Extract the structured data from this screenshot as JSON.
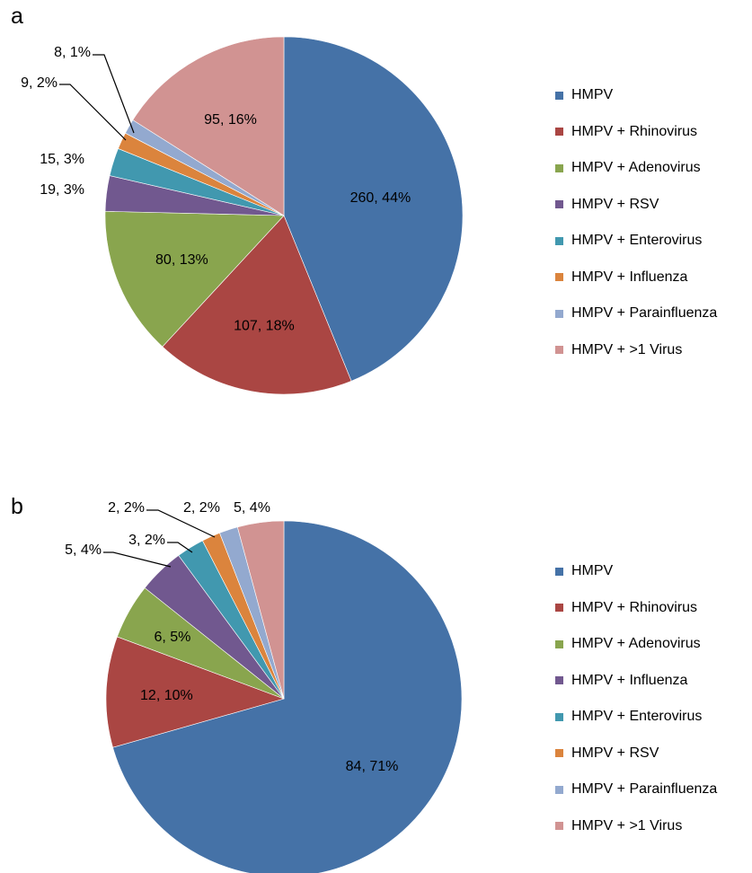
{
  "chart_data": [
    {
      "type": "pie",
      "panel_label": "a",
      "legend_position": "right",
      "slices": [
        {
          "name": "HMPV",
          "value": 260,
          "percent": "44%",
          "label": "260, 44%",
          "color": "#4572a7"
        },
        {
          "name": "HMPV + Rhinovirus",
          "value": 107,
          "percent": "18%",
          "label": "107, 18%",
          "color": "#aa4643"
        },
        {
          "name": "HMPV + Adenovirus",
          "value": 80,
          "percent": "13%",
          "label": "80, 13%",
          "color": "#89a54e"
        },
        {
          "name": "HMPV + RSV",
          "value": 19,
          "percent": "3%",
          "label": "19, 3%",
          "color": "#71588f"
        },
        {
          "name": "HMPV + Enterovirus",
          "value": 15,
          "percent": "3%",
          "label": "15, 3%",
          "color": "#4198af"
        },
        {
          "name": "HMPV + Influenza",
          "value": 9,
          "percent": "2%",
          "label": "9, 2%",
          "color": "#db843d"
        },
        {
          "name": "HMPV + Parainfluenza",
          "value": 8,
          "percent": "1%",
          "label": "8, 1%",
          "color": "#93a9cf"
        },
        {
          "name": "HMPV + >1 Virus",
          "value": 95,
          "percent": "16%",
          "label": "95, 16%",
          "color": "#d19392"
        }
      ]
    },
    {
      "type": "pie",
      "panel_label": "b",
      "legend_position": "right",
      "slices": [
        {
          "name": "HMPV",
          "value": 84,
          "percent": "71%",
          "label": "84, 71%",
          "color": "#4572a7"
        },
        {
          "name": "HMPV + Rhinovirus",
          "value": 12,
          "percent": "10%",
          "label": "12, 10%",
          "color": "#aa4643"
        },
        {
          "name": "HMPV + Adenovirus",
          "value": 6,
          "percent": "5%",
          "label": "6, 5%",
          "color": "#89a54e"
        },
        {
          "name": "HMPV + Influenza",
          "value": 5,
          "percent": "4%",
          "label": "5, 4%",
          "color": "#71588f"
        },
        {
          "name": "HMPV + Enterovirus",
          "value": 3,
          "percent": "2%",
          "label": "3, 2%",
          "color": "#4198af"
        },
        {
          "name": "HMPV + RSV",
          "value": 2,
          "percent": "2%",
          "label": "2, 2%",
          "color": "#db843d"
        },
        {
          "name": "HMPV + Parainfluenza",
          "value": 2,
          "percent": "2%",
          "label": "2, 2%",
          "color": "#93a9cf"
        },
        {
          "name": "HMPV + >1 Virus",
          "value": 5,
          "percent": "4%",
          "label": "5, 4%",
          "color": "#d19392"
        }
      ]
    }
  ]
}
